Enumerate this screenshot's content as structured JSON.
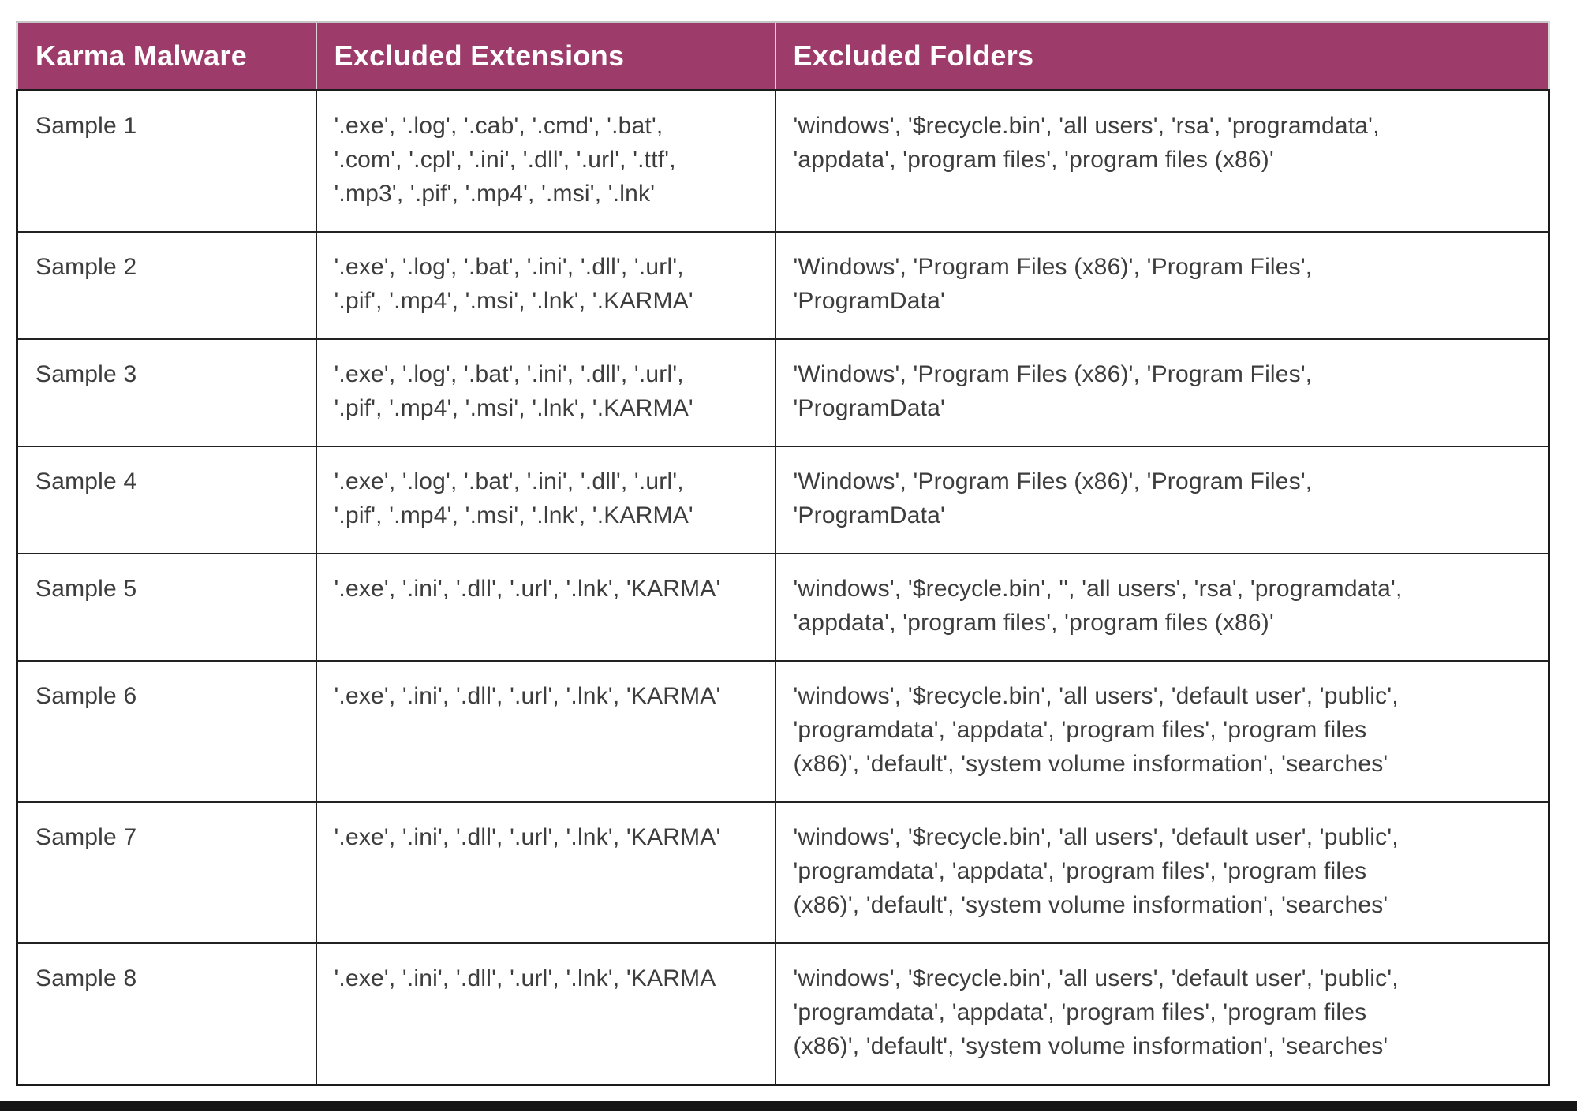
{
  "table": {
    "columns": [
      {
        "label": "Karma Malware"
      },
      {
        "label": "Excluded Extensions"
      },
      {
        "label": "Excluded Folders"
      }
    ],
    "rows": [
      {
        "sample": "Sample 1",
        "extensions": "'.exe', '.log', '.cab', '.cmd', '.bat',\n'.com', '.cpl', '.ini', '.dll', '.url', '.ttf',\n'.mp3', '.pif', '.mp4', '.msi', '.lnk'",
        "folders": "'windows', '$recycle.bin', 'all users', 'rsa', 'programdata',\n'appdata', 'program files', 'program files (x86)'"
      },
      {
        "sample": "Sample 2",
        "extensions": "'.exe', '.log', '.bat', '.ini', '.dll', '.url',\n'.pif', '.mp4', '.msi', '.lnk', '.KARMA'",
        "folders": "'Windows', 'Program Files (x86)', 'Program Files',\n'ProgramData'"
      },
      {
        "sample": "Sample 3",
        "extensions": "'.exe', '.log', '.bat', '.ini', '.dll', '.url',\n'.pif', '.mp4', '.msi', '.lnk', '.KARMA'",
        "folders": "'Windows', 'Program Files (x86)', 'Program Files',\n'ProgramData'"
      },
      {
        "sample": "Sample 4",
        "extensions": "'.exe', '.log', '.bat', '.ini', '.dll', '.url',\n'.pif', '.mp4', '.msi', '.lnk', '.KARMA'",
        "folders": "'Windows', 'Program Files (x86)', 'Program Files',\n'ProgramData'"
      },
      {
        "sample": "Sample 5",
        "extensions": "'.exe', '.ini', '.dll', '.url', '.lnk', 'KARMA'",
        "folders": "'windows', '$recycle.bin', '', 'all users', 'rsa', 'programdata',\n'appdata', 'program files', 'program files (x86)'"
      },
      {
        "sample": "Sample 6",
        "extensions": "'.exe', '.ini', '.dll', '.url', '.lnk', 'KARMA'",
        "folders": "'windows', '$recycle.bin', 'all users', 'default user', 'public',\n'programdata', 'appdata', 'program files', 'program files\n(x86)', 'default', 'system volume insformation', 'searches'"
      },
      {
        "sample": "Sample 7",
        "extensions": "'.exe', '.ini', '.dll', '.url', '.lnk', 'KARMA'",
        "folders": "'windows', '$recycle.bin', 'all users', 'default user', 'public',\n'programdata', 'appdata', 'program files', 'program files\n(x86)', 'default', 'system volume insformation', 'searches'"
      },
      {
        "sample": "Sample 8",
        "extensions": "'.exe', '.ini', '.dll', '.url', '.lnk', 'KARMA",
        "folders": "'windows', '$recycle.bin', 'all users', 'default user', 'public',\n'programdata', 'appdata', 'program files', 'program files\n(x86)', 'default', 'system volume insformation', 'searches'"
      }
    ]
  },
  "colors": {
    "header_bg": "#9d3c6b",
    "header_text": "#ffffff",
    "body_text": "#3d3d3d",
    "border_dark": "#1e1e1e"
  }
}
